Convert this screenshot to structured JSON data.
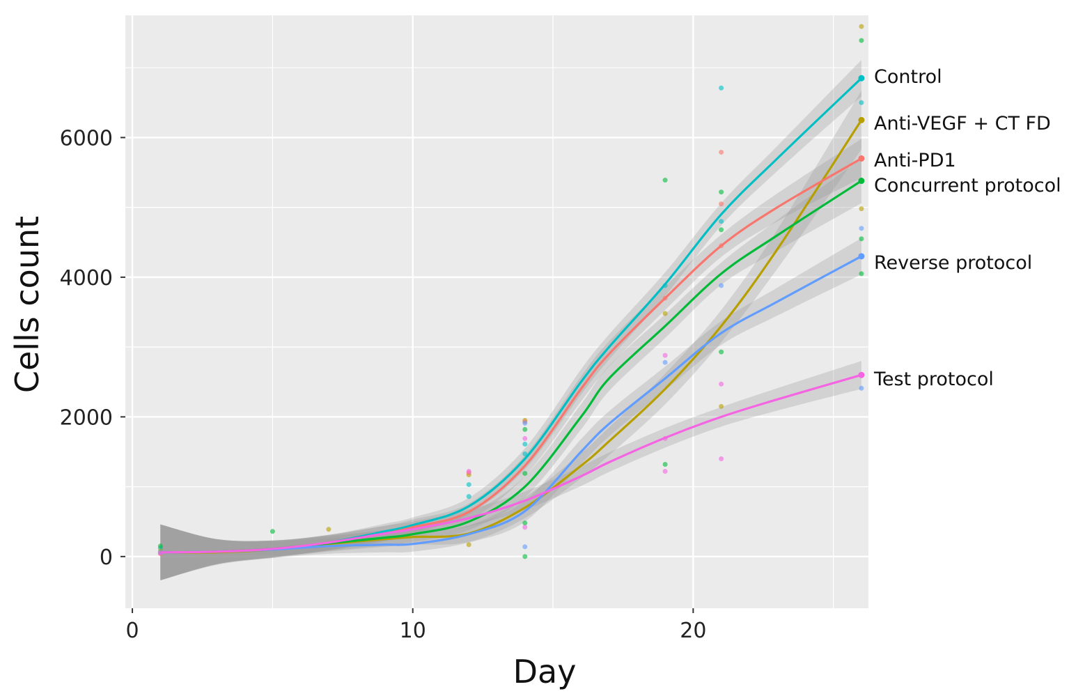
{
  "chart_data": {
    "type": "line",
    "title": "",
    "xlabel": "Day",
    "ylabel": "Cells count",
    "xlim": [
      -0.25,
      26.25
    ],
    "ylim": [
      -740,
      7750
    ],
    "x_ticks": [
      0,
      10,
      20
    ],
    "y_ticks": [
      0,
      2000,
      4000,
      6000
    ],
    "grid": true,
    "legend": "direct labels at line ends (right)",
    "x": [
      1,
      3,
      5,
      7,
      9,
      10,
      12,
      14,
      16,
      17,
      19,
      21,
      23,
      26
    ],
    "series": [
      {
        "name": "Control",
        "color": "#00BFC4",
        "values": [
          60,
          70,
          110,
          200,
          360,
          450,
          720,
          1400,
          2500,
          3000,
          3900,
          4900,
          5700,
          6850
        ],
        "ci_halfwidth": [
          400,
          180,
          120,
          110,
          110,
          110,
          120,
          150,
          180,
          180,
          170,
          160,
          180,
          260
        ],
        "points": [
          [
            1,
            120
          ],
          [
            12,
            1030
          ],
          [
            12,
            860
          ],
          [
            14,
            1610
          ],
          [
            14,
            1470
          ],
          [
            19,
            3880
          ],
          [
            21,
            6710
          ],
          [
            21,
            4800
          ],
          [
            26,
            6500
          ],
          [
            26,
            6850
          ]
        ]
      },
      {
        "name": "Anti-VEGF + CT FD",
        "color": "#B79F00",
        "values": [
          60,
          60,
          100,
          180,
          250,
          280,
          330,
          700,
          1300,
          1650,
          2400,
          3300,
          4400,
          6250
        ],
        "ci_halfwidth": [
          400,
          180,
          120,
          110,
          110,
          110,
          120,
          150,
          180,
          200,
          220,
          230,
          280,
          420
        ],
        "points": [
          [
            1,
            80
          ],
          [
            7,
            390
          ],
          [
            12,
            1170
          ],
          [
            12,
            170
          ],
          [
            14,
            1950
          ],
          [
            19,
            3480
          ],
          [
            21,
            2150
          ],
          [
            26,
            7590
          ],
          [
            26,
            4980
          ],
          [
            26,
            6250
          ]
        ]
      },
      {
        "name": "Anti-PD1",
        "color": "#F8766D",
        "values": [
          60,
          70,
          110,
          200,
          330,
          420,
          640,
          1300,
          2400,
          2900,
          3700,
          4450,
          5000,
          5700
        ],
        "ci_halfwidth": [
          400,
          180,
          120,
          110,
          110,
          110,
          120,
          150,
          180,
          180,
          170,
          160,
          200,
          280
        ],
        "points": [
          [
            1,
            40
          ],
          [
            12,
            1200
          ],
          [
            14,
            1930
          ],
          [
            19,
            3700
          ],
          [
            21,
            5790
          ],
          [
            21,
            5050
          ],
          [
            21,
            4450
          ],
          [
            26,
            5700
          ]
        ]
      },
      {
        "name": "Concurrent protocol",
        "color": "#00BA38",
        "values": [
          60,
          70,
          110,
          190,
          270,
          320,
          500,
          1000,
          2000,
          2550,
          3300,
          4050,
          4600,
          5380
        ],
        "ci_halfwidth": [
          400,
          180,
          120,
          110,
          110,
          110,
          120,
          150,
          180,
          180,
          170,
          160,
          220,
          320
        ],
        "points": [
          [
            1,
            150
          ],
          [
            5,
            360
          ],
          [
            14,
            1820
          ],
          [
            14,
            1190
          ],
          [
            14,
            480
          ],
          [
            14,
            0
          ],
          [
            19,
            5390
          ],
          [
            19,
            1320
          ],
          [
            21,
            5220
          ],
          [
            21,
            4680
          ],
          [
            21,
            2930
          ],
          [
            26,
            7390
          ],
          [
            26,
            4550
          ],
          [
            26,
            4050
          ],
          [
            26,
            5380
          ]
        ]
      },
      {
        "name": "Reverse protocol",
        "color": "#619CFF",
        "values": [
          60,
          70,
          100,
          150,
          170,
          180,
          320,
          650,
          1500,
          1900,
          2550,
          3200,
          3650,
          4300
        ],
        "ci_halfwidth": [
          400,
          180,
          120,
          110,
          110,
          110,
          120,
          150,
          180,
          180,
          170,
          170,
          200,
          260
        ],
        "points": [
          [
            1,
            60
          ],
          [
            14,
            1910
          ],
          [
            14,
            140
          ],
          [
            19,
            2780
          ],
          [
            21,
            3880
          ],
          [
            26,
            4700
          ],
          [
            26,
            2410
          ],
          [
            26,
            4300
          ]
        ]
      },
      {
        "name": "Test protocol",
        "color": "#F564E3",
        "values": [
          60,
          70,
          110,
          200,
          330,
          390,
          550,
          800,
          1150,
          1350,
          1700,
          2000,
          2250,
          2600
        ],
        "ci_halfwidth": [
          400,
          180,
          120,
          110,
          110,
          110,
          120,
          130,
          140,
          140,
          140,
          140,
          160,
          200
        ],
        "points": [
          [
            1,
            50
          ],
          [
            12,
            1220
          ],
          [
            14,
            1690
          ],
          [
            14,
            420
          ],
          [
            19,
            2880
          ],
          [
            19,
            1690
          ],
          [
            19,
            1220
          ],
          [
            21,
            2470
          ],
          [
            21,
            1400
          ],
          [
            26,
            2600
          ]
        ]
      }
    ]
  }
}
